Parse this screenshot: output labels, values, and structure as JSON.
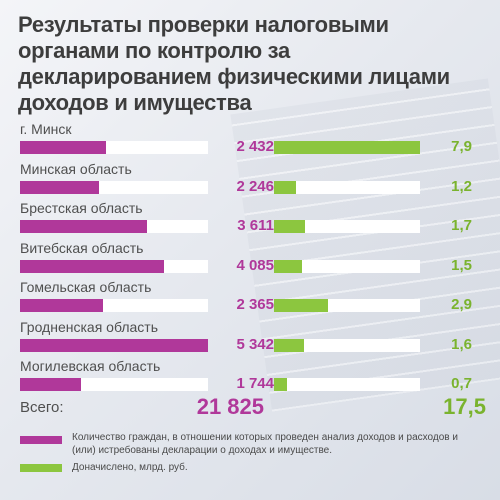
{
  "title": "Результаты проверки налоговыми органами по контролю за декларированием физическими лицами доходов и имущества",
  "colors": {
    "persons": "#b0389a",
    "amount": "#8cc63f"
  },
  "chart_data": {
    "type": "bar",
    "title": "Результаты проверки налоговыми органами по контролю за декларированием физическими лицами доходов и имущества",
    "categories": [
      "г. Минск",
      "Минская область",
      "Брестская область",
      "Витебская область",
      "Гомельская область",
      "Гродненская область",
      "Могилевская область"
    ],
    "series": [
      {
        "name": "Количество граждан, в отношении которых проведен анализ доходов и расходов и (или) истребованы декларации о доходах и имуществе.",
        "values": [
          2432,
          2246,
          3611,
          4085,
          2365,
          5342,
          1744
        ],
        "labels": [
          "2 432",
          "2 246",
          "3 611",
          "4 085",
          "2 365",
          "5 342",
          "1 744"
        ],
        "max": 5342
      },
      {
        "name": "Доначислено, млрд. руб.",
        "values": [
          7.9,
          1.2,
          1.7,
          1.5,
          2.9,
          1.6,
          0.7
        ],
        "labels": [
          "7,9",
          "1,2",
          "1,7",
          "1,5",
          "2,9",
          "1,6",
          "0,7"
        ],
        "max": 7.9
      }
    ],
    "totals": {
      "label": "Всего:",
      "persons": "21 825",
      "amount": "17,5"
    },
    "legend": [
      "Количество граждан, в отношении которых проведен анализ доходов и расходов и (или) истребованы декларации о доходах и имуществе.",
      "Доначислено, млрд. руб."
    ]
  }
}
